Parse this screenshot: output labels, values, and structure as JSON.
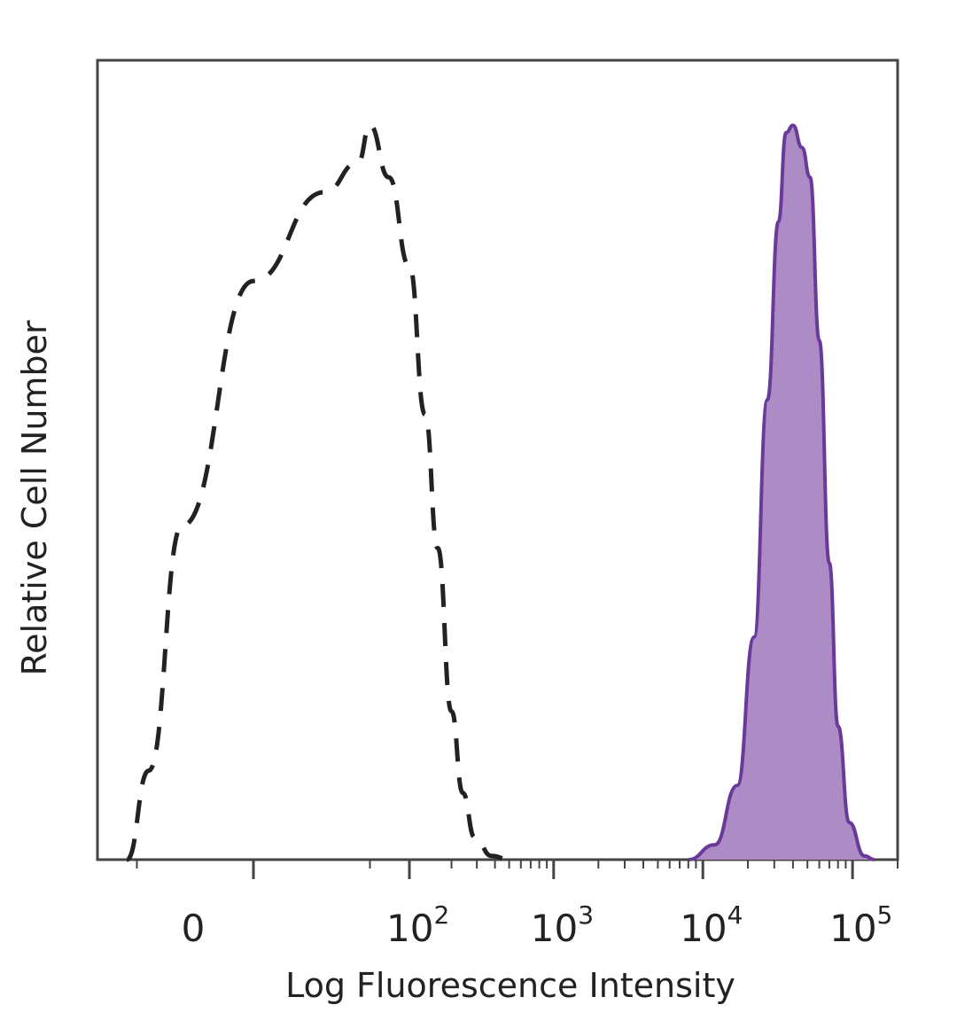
{
  "chart_data": {
    "type": "area",
    "title": "",
    "xlabel": "Log Fluorescence Intensity",
    "ylabel": "Relative Cell Number",
    "x_scale": "biexponential",
    "xlim": [
      -100,
      200000
    ],
    "ylim": [
      0,
      1
    ],
    "y_ticks": "none",
    "grid": false,
    "legend": "none",
    "x_ticks": [
      {
        "value": 0,
        "label": "0",
        "exp": ""
      },
      {
        "value": 100,
        "label": "10",
        "exp": "2"
      },
      {
        "value": 1000,
        "label": "10",
        "exp": "3"
      },
      {
        "value": 10000,
        "label": "10",
        "exp": "4"
      },
      {
        "value": 100000,
        "label": "10",
        "exp": "5"
      }
    ],
    "series": [
      {
        "style": "dashed",
        "color": "#222222",
        "fill": "none",
        "points": [
          [
            -60,
            0.0
          ],
          [
            -40,
            0.12
          ],
          [
            -20,
            0.45
          ],
          [
            0,
            0.78
          ],
          [
            20,
            0.9
          ],
          [
            40,
            0.94
          ],
          [
            50,
            0.99
          ],
          [
            70,
            0.92
          ],
          [
            100,
            0.8
          ],
          [
            130,
            0.6
          ],
          [
            160,
            0.42
          ],
          [
            200,
            0.2
          ],
          [
            240,
            0.09
          ],
          [
            290,
            0.03
          ],
          [
            380,
            0.005
          ],
          [
            500,
            0.0
          ]
        ]
      },
      {
        "style": "solid",
        "color": "#6a3a9a",
        "fill": "#ad8bc5",
        "points": [
          [
            8000,
            0.0
          ],
          [
            12000,
            0.02
          ],
          [
            17000,
            0.1
          ],
          [
            22000,
            0.3
          ],
          [
            27000,
            0.62
          ],
          [
            32000,
            0.86
          ],
          [
            36000,
            0.98
          ],
          [
            40000,
            0.99
          ],
          [
            46000,
            0.96
          ],
          [
            52000,
            0.92
          ],
          [
            60000,
            0.7
          ],
          [
            70000,
            0.4
          ],
          [
            80000,
            0.18
          ],
          [
            95000,
            0.05
          ],
          [
            120000,
            0.005
          ],
          [
            140000,
            0.0
          ]
        ]
      }
    ]
  }
}
